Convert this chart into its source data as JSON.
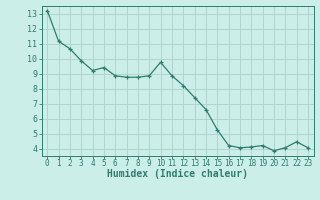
{
  "x": [
    0,
    1,
    2,
    3,
    4,
    5,
    6,
    7,
    8,
    9,
    10,
    11,
    12,
    13,
    14,
    15,
    16,
    17,
    18,
    19,
    20,
    21,
    22,
    23
  ],
  "y": [
    13.2,
    11.15,
    10.65,
    9.85,
    9.2,
    9.4,
    8.85,
    8.75,
    8.75,
    8.85,
    9.75,
    8.85,
    8.2,
    7.4,
    6.6,
    5.25,
    4.2,
    4.05,
    4.1,
    4.2,
    3.85,
    4.05,
    4.45,
    4.05
  ],
  "line_color": "#2e7d6e",
  "marker": "+",
  "bg_color": "#cceee8",
  "grid_color": "#b0d5cf",
  "xlabel": "Humidex (Indice chaleur)",
  "xlim": [
    -0.5,
    23.5
  ],
  "ylim": [
    3.5,
    13.5
  ],
  "yticks": [
    4,
    5,
    6,
    7,
    8,
    9,
    10,
    11,
    12,
    13
  ],
  "xticks": [
    0,
    1,
    2,
    3,
    4,
    5,
    6,
    7,
    8,
    9,
    10,
    11,
    12,
    13,
    14,
    15,
    16,
    17,
    18,
    19,
    20,
    21,
    22,
    23
  ],
  "axis_color": "#2e7d6e",
  "tick_color": "#2e7d6e",
  "tick_fontsize": 5.5,
  "xlabel_fontsize": 7.0
}
